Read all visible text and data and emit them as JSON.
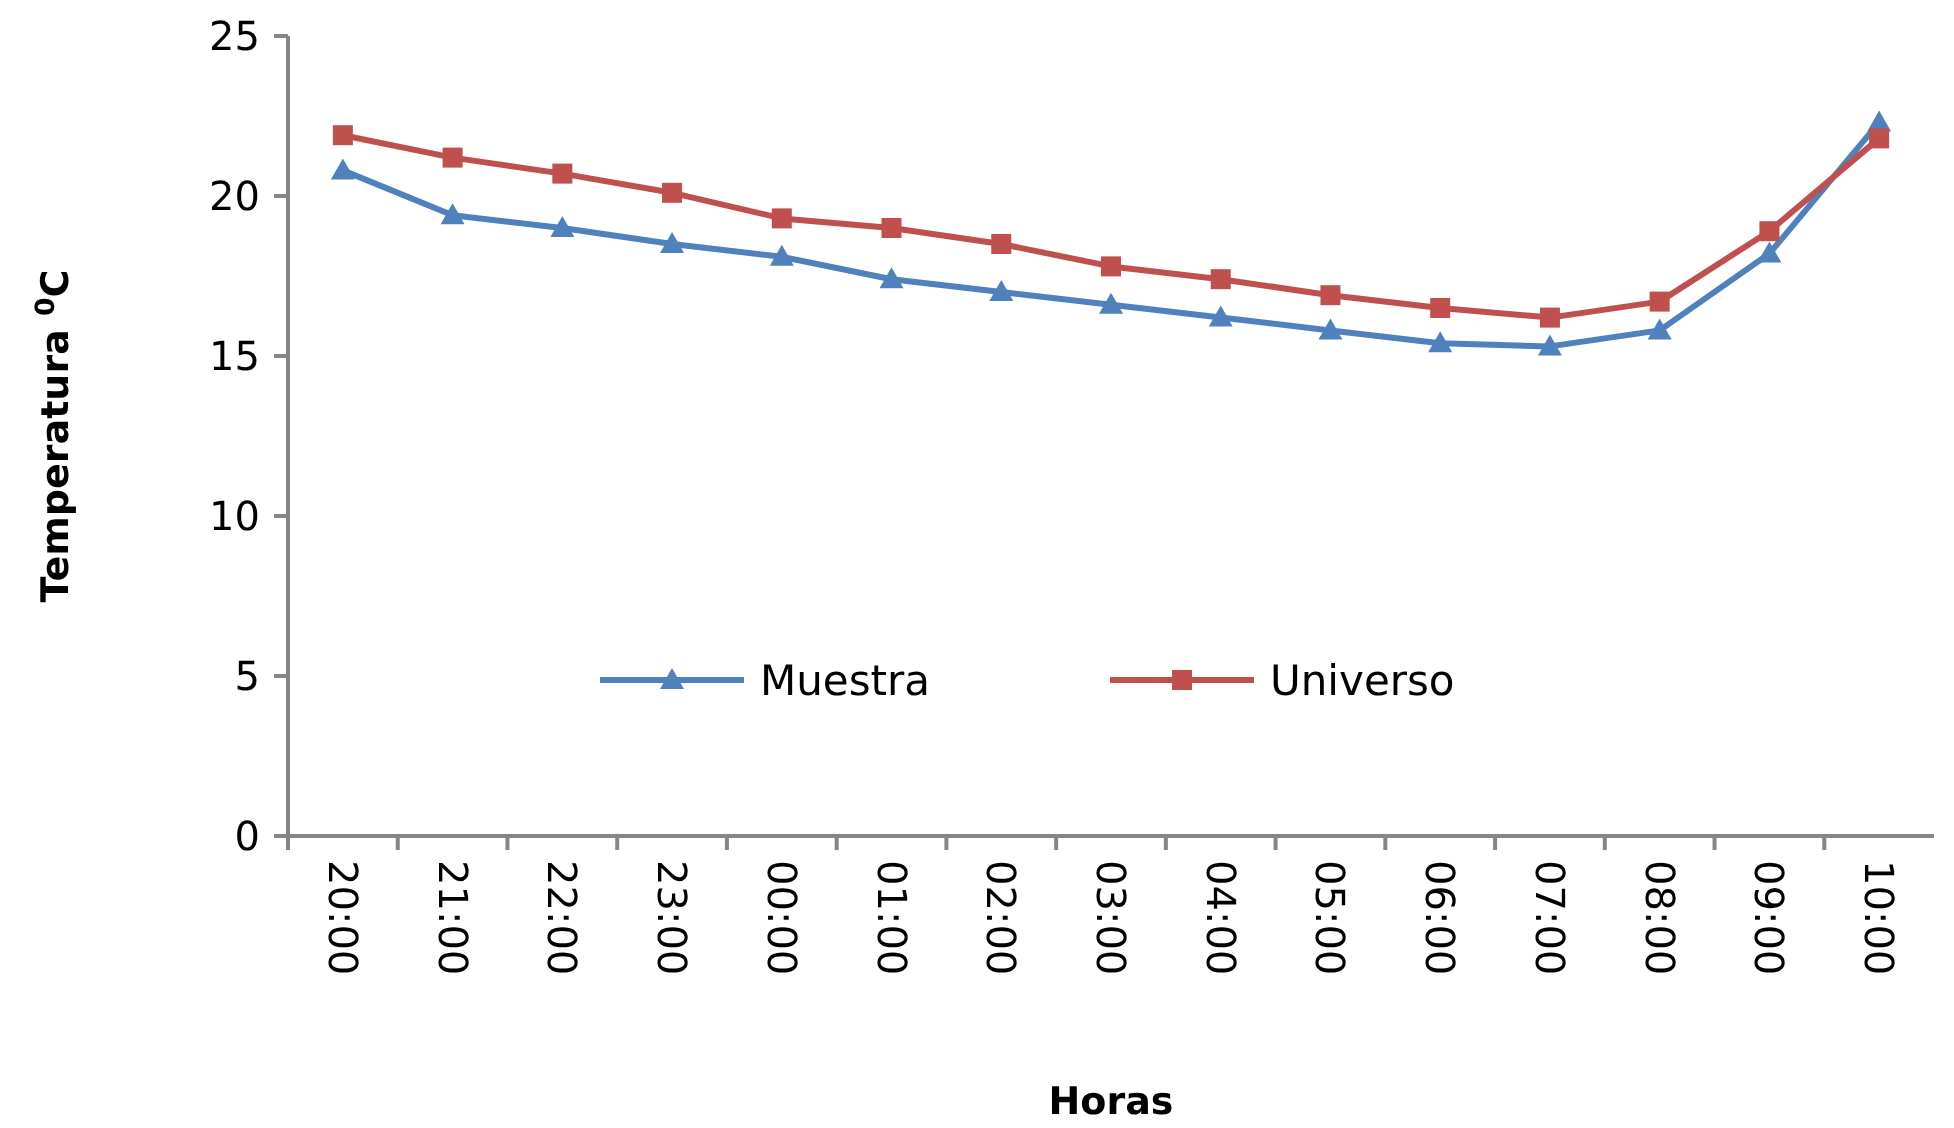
{
  "chart_data": {
    "type": "line",
    "xlabel": "Horas",
    "ylabel": "Temperatura $^{0}$C",
    "categories": [
      "20:00",
      "21:00",
      "22:00",
      "23:00",
      "00:00",
      "01:00",
      "02:00",
      "03:00",
      "04:00",
      "05:00",
      "06:00",
      "07:00",
      "08:00",
      "09:00",
      "10:00"
    ],
    "series": [
      {
        "name": "Muestra",
        "color": "#4f81bd",
        "marker": "triangle",
        "values": [
          20.8,
          19.4,
          19.0,
          18.5,
          18.1,
          17.4,
          17.0,
          16.6,
          16.2,
          15.8,
          15.4,
          15.3,
          15.8,
          18.2,
          22.3
        ]
      },
      {
        "name": "Universo",
        "color": "#c0504d",
        "marker": "square",
        "values": [
          21.9,
          21.2,
          20.7,
          20.1,
          19.3,
          19.0,
          18.5,
          17.8,
          17.4,
          16.9,
          16.5,
          16.2,
          16.7,
          18.9,
          21.8
        ]
      }
    ],
    "ylim": [
      0,
      25
    ],
    "yticks": [
      0,
      5,
      10,
      15,
      20,
      25
    ],
    "grid": false,
    "legend": "bottom",
    "line_style": "solid"
  }
}
